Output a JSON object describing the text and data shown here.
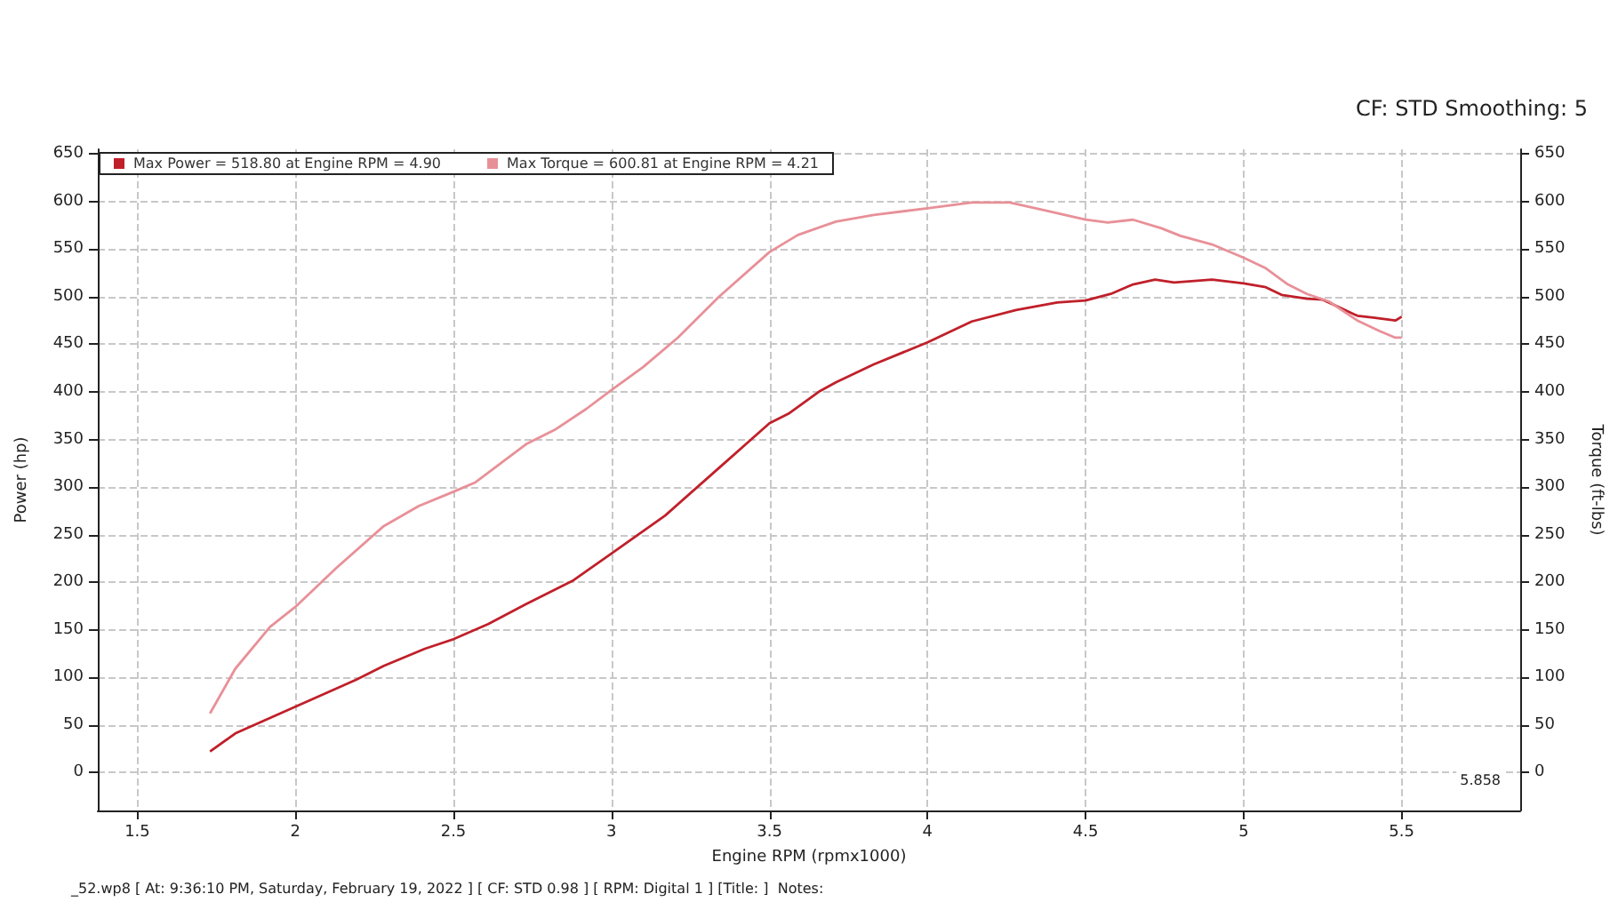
{
  "chart_data": {
    "type": "line",
    "subtitle": "CF: STD Smoothing: 5",
    "xlabel": "Engine RPM (rpmx1000)",
    "ylabel": "Power (hp)",
    "y2label": "Torque (ft-lbs)",
    "annotations": [
      "5.858",
      "_52.wp8 [ At: 9:36:10 PM, Saturday, February 19, 2022 ] [ CF: STD 0.98 ] [ RPM: Digital 1 ] [Title: ]  Notes:"
    ],
    "series": [
      {
        "name": "Max Power = 518.80 at Engine RPM = 4.90",
        "color": "#c0202a",
        "x": [
          1.73,
          1.81,
          2.0,
          2.19,
          2.28,
          2.41,
          2.5,
          2.61,
          2.73,
          2.88,
          3.0,
          3.17,
          3.34,
          3.5,
          3.56,
          3.66,
          3.71,
          3.83,
          4.0,
          4.14,
          4.28,
          4.41,
          4.5,
          4.58,
          4.65,
          4.72,
          4.78,
          4.9,
          5.0,
          5.07,
          5.12,
          5.2,
          5.25,
          5.36,
          5.41,
          5.48,
          5.5
        ],
        "values": [
          22,
          41,
          69,
          97,
          112,
          130,
          140,
          156,
          177,
          202,
          230,
          270,
          320,
          367,
          377,
          401,
          410,
          429,
          452,
          474,
          486,
          494,
          496,
          503,
          513,
          518,
          515,
          518,
          514,
          510,
          502,
          498,
          497,
          480,
          478,
          475,
          479
        ]
      },
      {
        "name": "Max Torque = 600.81 at Engine RPM = 4.21",
        "color": "#e89098",
        "x": [
          1.73,
          1.81,
          1.92,
          2.0,
          2.13,
          2.28,
          2.39,
          2.5,
          2.57,
          2.73,
          2.82,
          2.92,
          3.0,
          3.1,
          3.21,
          3.34,
          3.5,
          3.59,
          3.71,
          3.83,
          4.0,
          4.14,
          4.26,
          4.37,
          4.5,
          4.57,
          4.65,
          4.74,
          4.8,
          4.9,
          5.0,
          5.07,
          5.14,
          5.2,
          5.27,
          5.36,
          5.43,
          5.48,
          5.5
        ],
        "values": [
          62,
          109,
          153,
          174,
          215,
          259,
          280,
          295,
          305,
          345,
          360,
          382,
          402,
          426,
          457,
          500,
          547,
          565,
          579,
          586,
          593,
          599,
          599,
          591,
          581,
          578,
          581,
          572,
          564,
          555,
          541,
          530,
          513,
          503,
          495,
          475,
          464,
          457,
          457
        ]
      }
    ],
    "xlim": [
      1.375,
      5.875
    ],
    "xticks": [
      1.5,
      2.0,
      2.5,
      3.0,
      3.5,
      4.0,
      4.5,
      5.0,
      5.5
    ],
    "ylim": [
      -40,
      655
    ],
    "yticks": [
      0,
      50,
      100,
      150,
      200,
      250,
      300,
      350,
      400,
      450,
      500,
      550,
      600,
      650
    ],
    "y2lim": [
      -40,
      655
    ],
    "y2ticks": [
      0,
      50,
      100,
      150,
      200,
      250,
      300,
      350,
      400,
      450,
      500,
      550,
      600,
      650
    ],
    "grid": true,
    "legend": "top left",
    "marker": "none",
    "line_style": "solid"
  }
}
